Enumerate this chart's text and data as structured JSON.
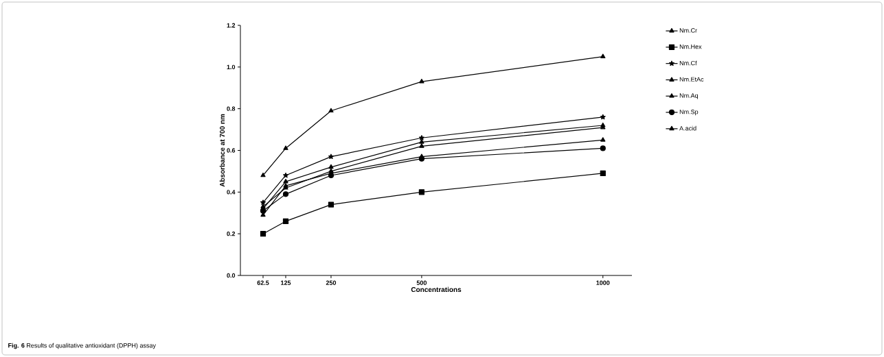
{
  "chart_data": {
    "type": "line",
    "xlabel": "Concentrations",
    "ylabel": "Absorbance at 700 nm",
    "x": [
      62.5,
      125,
      250,
      500,
      1000
    ],
    "xlim": [
      0,
      1080
    ],
    "xticks": [
      62.5,
      125,
      250,
      500,
      1000
    ],
    "ylim": [
      0,
      1.2
    ],
    "yticks": [
      {
        "value": 0,
        "label": "0.0"
      },
      {
        "value": 0.2,
        "label": "0.2"
      },
      {
        "value": 0.4,
        "label": "0.4"
      },
      {
        "value": 0.6,
        "label": "0.6"
      },
      {
        "value": 0.8,
        "label": "0.8"
      },
      {
        "value": 1.0,
        "label": "1.0"
      },
      {
        "value": 1.2,
        "label": "1.2"
      }
    ],
    "grid": false,
    "legend": "right",
    "line_style": "solid",
    "series": [
      {
        "name": "Nm.Cr",
        "color": "#000000",
        "marker": "triangle",
        "values": [
          0.33,
          0.42,
          0.5,
          0.62,
          0.71
        ]
      },
      {
        "name": "Nm.Hex",
        "color": "#000000",
        "marker": "square",
        "values": [
          0.2,
          0.26,
          0.34,
          0.4,
          0.49
        ]
      },
      {
        "name": "Nm.Cf",
        "color": "#000000",
        "marker": "star",
        "values": [
          0.35,
          0.48,
          0.57,
          0.66,
          0.76
        ]
      },
      {
        "name": "Nm.EtAc",
        "color": "#000000",
        "marker": "triangle",
        "values": [
          0.32,
          0.45,
          0.52,
          0.64,
          0.72
        ]
      },
      {
        "name": "Nm.Aq",
        "color": "#000000",
        "marker": "triangle",
        "values": [
          0.29,
          0.43,
          0.49,
          0.57,
          0.65
        ]
      },
      {
        "name": "Nm.Sp",
        "color": "#000000",
        "marker": "circle",
        "values": [
          0.31,
          0.39,
          0.48,
          0.56,
          0.61
        ]
      },
      {
        "name": "A.acid",
        "color": "#000000",
        "marker": "triangle",
        "values": [
          0.48,
          0.61,
          0.79,
          0.93,
          1.05
        ]
      }
    ],
    "annotations": [
      "**Fig. 6** Results of qualitative antioxidant (DPPH) assay"
    ]
  }
}
